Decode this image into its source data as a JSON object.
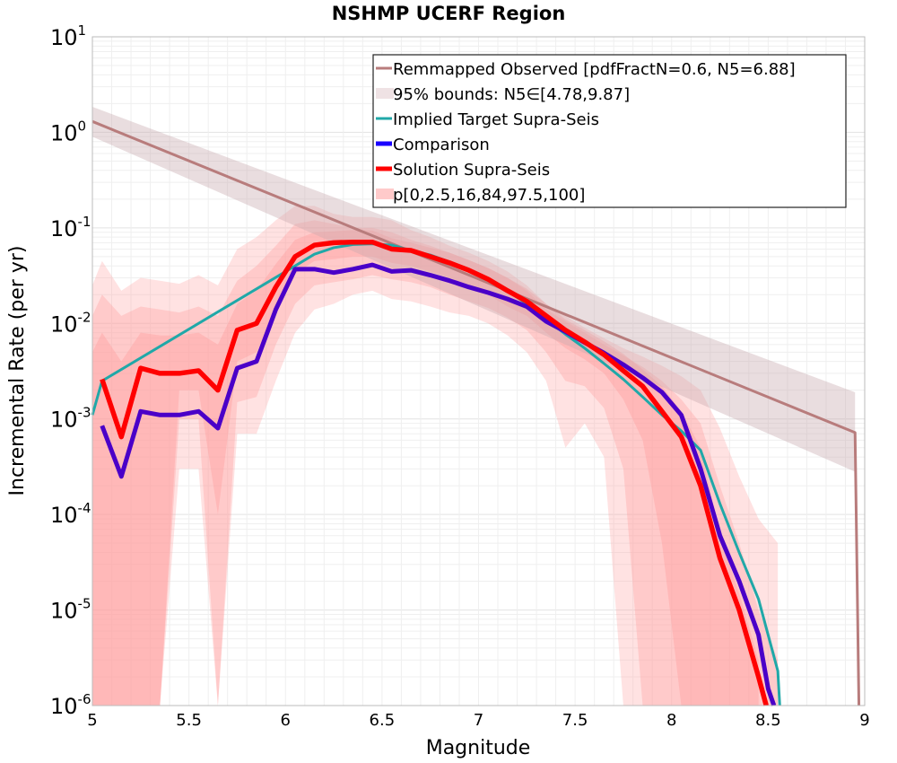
{
  "chart_data": {
    "type": "line",
    "title": "NSHMP UCERF Region",
    "xlabel": "Magnitude",
    "ylabel": "Incremental Rate (per yr)",
    "xlim": [
      5,
      9
    ],
    "ylim": [
      1e-06,
      10
    ],
    "yscale": "log",
    "grid": true,
    "legend_position": "top-right",
    "x_ticks": [
      "5",
      "5.5",
      "6",
      "6.5",
      "7",
      "7.5",
      "8",
      "8.5",
      "9"
    ],
    "y_ticks": [
      {
        "base": "10",
        "exp": "1"
      },
      {
        "base": "10",
        "exp": "0"
      },
      {
        "base": "10",
        "exp": "-1"
      },
      {
        "base": "10",
        "exp": "-2"
      },
      {
        "base": "10",
        "exp": "-3"
      },
      {
        "base": "10",
        "exp": "-4"
      },
      {
        "base": "10",
        "exp": "-5"
      },
      {
        "base": "10",
        "exp": "-6"
      }
    ],
    "legend": [
      {
        "label": "Remmapped Observed [pdfFractN=0.6, N5=6.88]",
        "color": "#b87c7c",
        "style": "line-thin"
      },
      {
        "label": "95% bounds: N5∈[4.78,9.87]",
        "color": "#e8d6d9",
        "style": "band"
      },
      {
        "label": "Implied Target Supra-Seis",
        "color": "#20a8a8",
        "style": "line-thin"
      },
      {
        "label": "Comparison",
        "color": "#1a00ff",
        "style": "line-thick"
      },
      {
        "label": "Solution Supra-Seis",
        "color": "#ff0000",
        "style": "line-thick"
      },
      {
        "label": "p[0,2.5,16,84,97.5,100]",
        "color": "#ffb3b3",
        "style": "band"
      }
    ],
    "observed": {
      "name": "Remmapped Observed [pdfFractN=0.6, N5=6.88]",
      "color": "#b87c7c",
      "x": [
        5.0,
        8.95,
        8.97
      ],
      "y": [
        1.3,
        0.00072,
        1e-06
      ]
    },
    "observed_bounds": {
      "name": "95% bounds: N5∈[4.78,9.87]",
      "color": "#e8d6d9",
      "x": [
        5.0,
        8.95
      ],
      "lower": [
        0.9,
        0.00028
      ],
      "upper": [
        1.85,
        0.0019
      ]
    },
    "implied_target": {
      "name": "Implied Target Supra-Seis",
      "color": "#20a8a8",
      "x": [
        5.0,
        5.05,
        6.05,
        6.15,
        6.25,
        6.35,
        6.45,
        6.55,
        6.65,
        6.75,
        6.85,
        6.95,
        7.05,
        7.15,
        7.25,
        7.35,
        7.45,
        7.55,
        7.65,
        7.75,
        7.85,
        7.95,
        8.05,
        8.15,
        8.25,
        8.35,
        8.45,
        8.55,
        8.56
      ],
      "y": [
        0.0011,
        0.0025,
        0.04,
        0.053,
        0.062,
        0.067,
        0.068,
        0.066,
        0.058,
        0.052,
        0.044,
        0.036,
        0.029,
        0.022,
        0.016,
        0.011,
        0.0077,
        0.0055,
        0.0038,
        0.0026,
        0.0017,
        0.0011,
        0.00075,
        0.00047,
        0.00013,
        4e-05,
        1.3e-05,
        2.3e-06,
        1e-06
      ]
    },
    "comparison": {
      "name": "Comparison",
      "color": "#4a00c8",
      "x": [
        5.05,
        5.15,
        5.25,
        5.35,
        5.45,
        5.55,
        5.65,
        5.75,
        5.85,
        5.95,
        6.05,
        6.15,
        6.25,
        6.35,
        6.45,
        6.55,
        6.65,
        6.75,
        6.85,
        6.95,
        7.05,
        7.15,
        7.25,
        7.35,
        7.45,
        7.55,
        7.65,
        7.75,
        7.85,
        7.95,
        8.05,
        8.15,
        8.25,
        8.35,
        8.45,
        8.5,
        8.53
      ],
      "y": [
        0.00085,
        0.00025,
        0.0012,
        0.0011,
        0.0011,
        0.0012,
        0.0008,
        0.0034,
        0.004,
        0.014,
        0.037,
        0.037,
        0.034,
        0.037,
        0.041,
        0.035,
        0.036,
        0.032,
        0.028,
        0.024,
        0.021,
        0.018,
        0.015,
        0.0105,
        0.0082,
        0.0063,
        0.0049,
        0.0037,
        0.0027,
        0.0019,
        0.0011,
        0.0003,
        6e-05,
        2e-05,
        5.5e-06,
        1.5e-06,
        1e-06
      ]
    },
    "solution": {
      "name": "Solution Supra-Seis",
      "color": "#ff0000",
      "x": [
        5.05,
        5.15,
        5.25,
        5.35,
        5.45,
        5.55,
        5.65,
        5.75,
        5.85,
        5.95,
        6.05,
        6.15,
        6.25,
        6.35,
        6.45,
        6.55,
        6.65,
        6.75,
        6.85,
        6.95,
        7.05,
        7.15,
        7.25,
        7.35,
        7.45,
        7.55,
        7.65,
        7.75,
        7.85,
        7.95,
        8.05,
        8.15,
        8.25,
        8.35,
        8.45,
        8.49
      ],
      "y": [
        0.0026,
        0.00065,
        0.0034,
        0.003,
        0.003,
        0.0032,
        0.002,
        0.0085,
        0.01,
        0.024,
        0.05,
        0.066,
        0.07,
        0.071,
        0.071,
        0.06,
        0.058,
        0.05,
        0.043,
        0.036,
        0.029,
        0.022,
        0.017,
        0.012,
        0.0085,
        0.0064,
        0.0047,
        0.0032,
        0.0022,
        0.0012,
        0.00065,
        0.0002,
        3.5e-05,
        1e-05,
        2e-06,
        1e-06
      ]
    },
    "percentile_bands": {
      "name": "p[0,2.5,16,84,97.5,100]",
      "color": "#ff9e9e",
      "bands": [
        {
          "x": [
            5.0,
            5.05,
            5.15,
            5.25,
            5.35,
            5.45,
            5.55,
            5.65,
            5.75,
            5.85,
            5.95,
            6.05,
            6.15,
            6.25,
            6.35,
            6.45,
            6.55,
            6.65,
            6.75,
            6.85,
            6.95,
            7.05,
            7.15,
            7.25,
            7.35,
            7.45,
            7.55,
            7.65,
            7.75,
            7.85,
            7.95,
            8.05,
            8.15,
            8.25,
            8.35,
            8.45,
            8.55
          ],
          "lower": [
            1e-06,
            1e-06,
            1e-06,
            1e-06,
            1e-06,
            0.0003,
            0.0003,
            1e-06,
            0.0007,
            0.0007,
            0.0025,
            0.008,
            0.014,
            0.016,
            0.02,
            0.022,
            0.018,
            0.017,
            0.015,
            0.013,
            0.012,
            0.01,
            0.0075,
            0.005,
            0.0025,
            0.0005,
            0.0009,
            0.0004,
            1e-06,
            1e-06,
            1e-06,
            1e-06,
            1e-06,
            1e-06,
            1e-06,
            1e-06,
            1e-06
          ],
          "upper": [
            0.025,
            0.045,
            0.022,
            0.03,
            0.028,
            0.026,
            0.032,
            0.025,
            0.06,
            0.08,
            0.12,
            0.17,
            0.17,
            0.14,
            0.13,
            0.13,
            0.12,
            0.095,
            0.08,
            0.065,
            0.055,
            0.045,
            0.035,
            0.025,
            0.016,
            0.012,
            0.009,
            0.007,
            0.0055,
            0.0045,
            0.0036,
            0.0028,
            0.002,
            0.0008,
            0.00025,
            9e-05,
            5e-05
          ]
        },
        {
          "x": [
            5.0,
            5.05,
            5.15,
            5.25,
            5.35,
            5.45,
            5.55,
            5.65,
            5.75,
            5.85,
            5.95,
            6.05,
            6.15,
            6.25,
            6.35,
            6.45,
            6.55,
            6.65,
            6.75,
            6.85,
            6.95,
            7.05,
            7.15,
            7.25,
            7.35,
            7.45,
            7.55,
            7.65,
            7.75,
            7.85,
            7.95,
            8.05,
            8.15,
            8.25,
            8.35,
            8.45,
            8.55
          ],
          "lower": [
            1e-06,
            1e-06,
            1e-06,
            1e-06,
            1e-06,
            0.001,
            0.001,
            1e-06,
            0.0015,
            0.0017,
            0.006,
            0.016,
            0.025,
            0.027,
            0.029,
            0.032,
            0.029,
            0.027,
            0.024,
            0.02,
            0.017,
            0.0145,
            0.0115,
            0.0085,
            0.005,
            0.0025,
            0.0022,
            0.0013,
            0.0003,
            1e-06,
            1e-06,
            1e-06,
            1e-06,
            1e-06,
            1e-06,
            1e-06,
            1e-06
          ],
          "upper": [
            0.012,
            0.02,
            0.012,
            0.015,
            0.014,
            0.013,
            0.015,
            0.012,
            0.028,
            0.04,
            0.065,
            0.11,
            0.12,
            0.11,
            0.1,
            0.1,
            0.09,
            0.075,
            0.065,
            0.055,
            0.046,
            0.038,
            0.03,
            0.022,
            0.014,
            0.0105,
            0.008,
            0.006,
            0.0046,
            0.0035,
            0.0025,
            0.0016,
            0.0009,
            0.0002,
            5e-05,
            1e-05,
            3e-06
          ]
        },
        {
          "x": [
            5.0,
            5.05,
            5.15,
            5.25,
            5.35,
            5.45,
            5.55,
            5.65,
            5.75,
            5.85,
            5.95,
            6.05,
            6.15,
            6.25,
            6.35,
            6.45,
            6.55,
            6.65,
            6.75,
            6.85,
            6.95,
            7.05,
            7.15,
            7.25,
            7.35,
            7.45,
            7.55,
            7.65,
            7.75,
            7.85,
            7.95,
            8.05,
            8.15,
            8.25,
            8.35,
            8.45
          ],
          "lower": [
            1e-06,
            1e-06,
            1e-06,
            1e-06,
            1e-06,
            0.002,
            0.002,
            0.0001,
            0.004,
            0.005,
            0.013,
            0.033,
            0.045,
            0.047,
            0.05,
            0.05,
            0.043,
            0.04,
            0.035,
            0.03,
            0.025,
            0.02,
            0.015,
            0.012,
            0.008,
            0.0055,
            0.0042,
            0.003,
            0.0016,
            0.0006,
            5e-05,
            1e-06,
            1e-06,
            1e-06,
            1e-06,
            1e-06
          ],
          "upper": [
            0.005,
            0.008,
            0.004,
            0.008,
            0.0075,
            0.0075,
            0.008,
            0.006,
            0.016,
            0.022,
            0.042,
            0.075,
            0.09,
            0.092,
            0.095,
            0.094,
            0.078,
            0.07,
            0.062,
            0.055,
            0.046,
            0.038,
            0.03,
            0.023,
            0.016,
            0.011,
            0.0085,
            0.0065,
            0.0048,
            0.0033,
            0.0022,
            0.0012,
            0.0005,
            6e-05,
            1.5e-05,
            3e-06
          ]
        }
      ]
    }
  }
}
